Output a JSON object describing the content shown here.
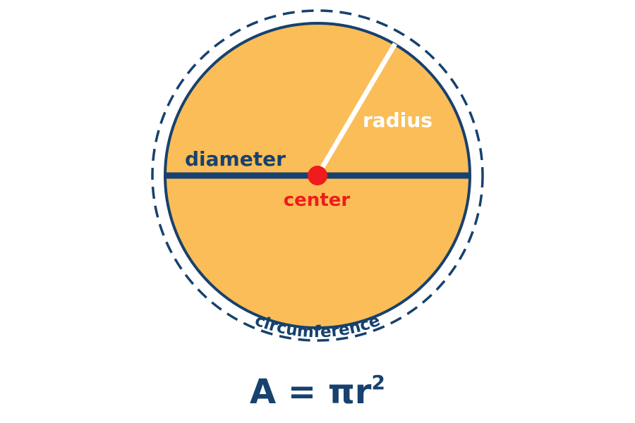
{
  "colors": {
    "fill": "#fbbd57",
    "navy": "#17416e",
    "white": "#ffffff",
    "red": "#ee1c1c"
  },
  "labels": {
    "radius": "radius",
    "diameter": "diameter",
    "center": "center",
    "circumference": "circumference"
  },
  "formula": {
    "base": "A = πr",
    "exponent": "2"
  }
}
